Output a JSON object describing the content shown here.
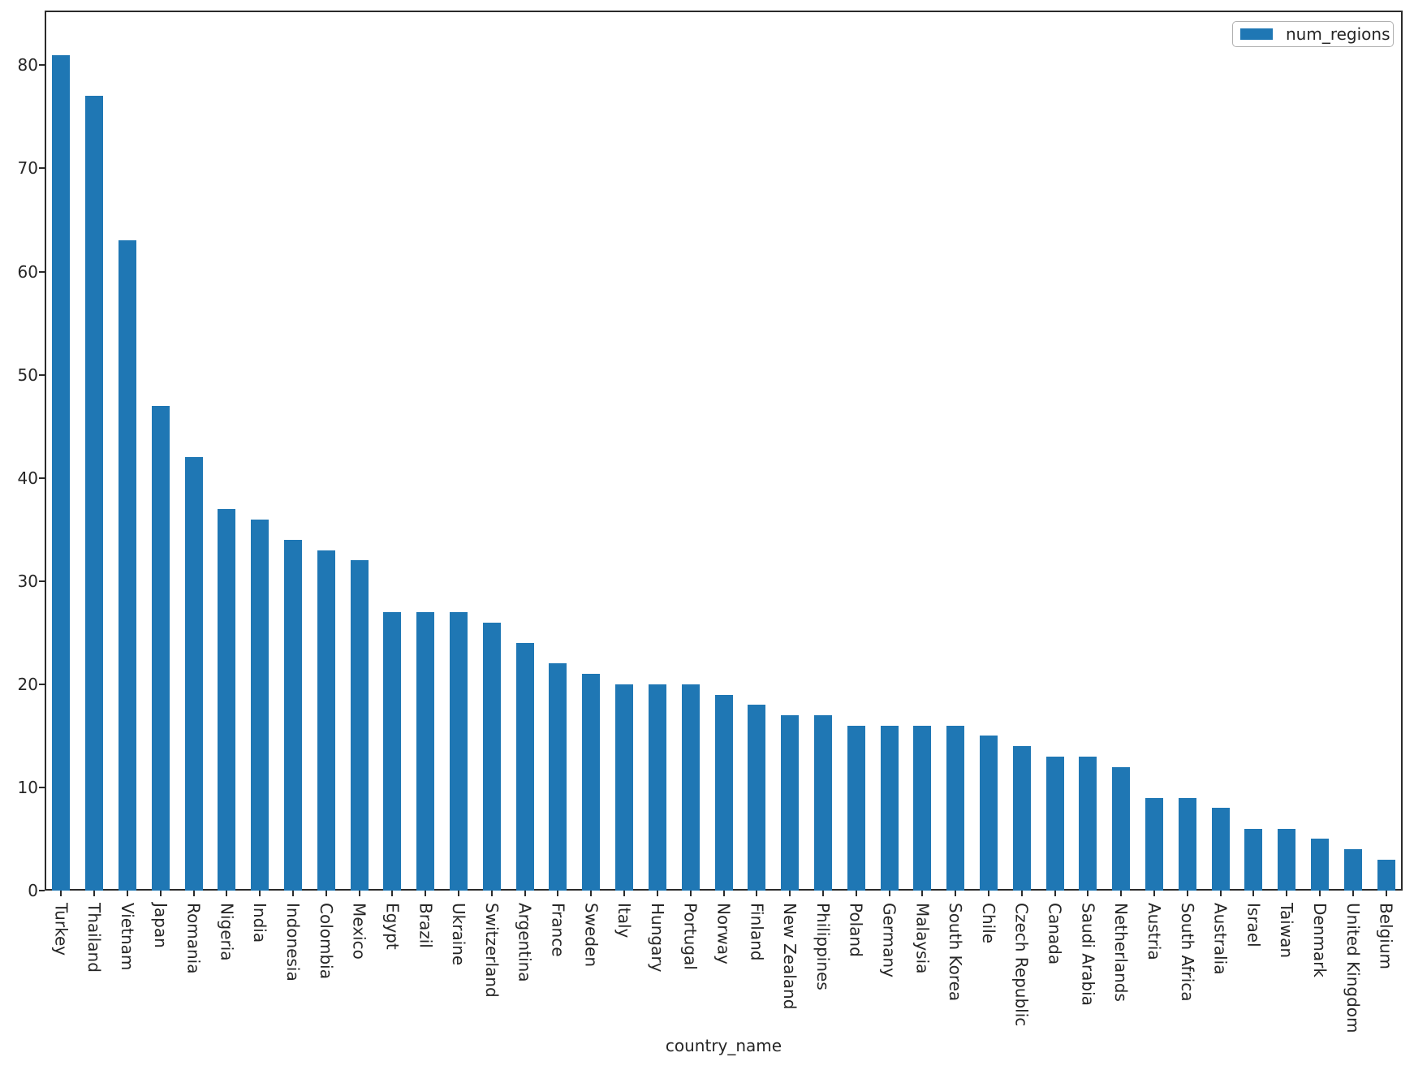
{
  "chart_data": {
    "type": "bar",
    "title": "",
    "xlabel": "country_name",
    "ylabel": "",
    "legend": "num_regions",
    "legend_position": "upper right",
    "grid": false,
    "bar_color": "#1f77b4",
    "axis_color": "#2b2b2b",
    "ylim": [
      0,
      85.3
    ],
    "yticks": [
      0,
      10,
      20,
      30,
      40,
      50,
      60,
      70,
      80
    ],
    "categories": [
      "Turkey",
      "Thailand",
      "Vietnam",
      "Japan",
      "Romania",
      "Nigeria",
      "India",
      "Indonesia",
      "Colombia",
      "Mexico",
      "Egypt",
      "Brazil",
      "Ukraine",
      "Switzerland",
      "Argentina",
      "France",
      "Sweden",
      "Italy",
      "Hungary",
      "Portugal",
      "Norway",
      "Finland",
      "New Zealand",
      "Philippines",
      "Poland",
      "Germany",
      "Malaysia",
      "South Korea",
      "Chile",
      "Czech Republic",
      "Canada",
      "Saudi Arabia",
      "Netherlands",
      "Austria",
      "South Africa",
      "Australia",
      "Israel",
      "Taiwan",
      "Denmark",
      "United Kingdom",
      "Belgium"
    ],
    "values": [
      81,
      77,
      63,
      47,
      42,
      37,
      36,
      34,
      33,
      32,
      27,
      27,
      27,
      26,
      24,
      22,
      21,
      20,
      20,
      20,
      19,
      18,
      17,
      17,
      16,
      16,
      16,
      16,
      15,
      14,
      13,
      13,
      12,
      9,
      9,
      8,
      6,
      6,
      5,
      4,
      3
    ]
  }
}
